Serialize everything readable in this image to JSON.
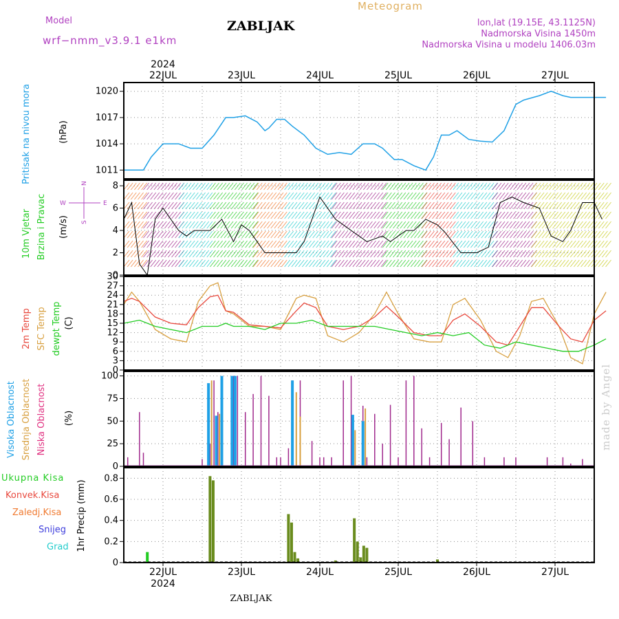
{
  "header": {
    "model_label": "Model",
    "model_name": "wrf−nmm_v3.9.1  e1km",
    "station": "ZABLJAK",
    "meteogram": "Meteogram",
    "lonlat": "lon,lat (19.15E, 43.1125N)",
    "elevation": "Nadmorska Visina 1450m",
    "model_elevation": "Nadmorska Visina u modelu 1406.03m",
    "watermark": "made by Angel",
    "footer_station": "ZABLJAK"
  },
  "colors": {
    "pressure": "#1ea0e6",
    "t2m": "#e8473c",
    "tsfc": "#d8a040",
    "dewpt": "#22cc22",
    "high_cloud": "#1ea0e6",
    "mid_cloud": "#d8a040",
    "low_cloud": "#a0288c",
    "total_precip": "#22cc22",
    "conv_precip": "#e8473c",
    "frozen_precip": "#f07a30",
    "snow": "#3c3cdc",
    "graupel": "#22cccc",
    "model_label": "#b040c0",
    "meteogram": "#e0b060"
  },
  "time_axis": {
    "year": "2024",
    "days": [
      "22JUL",
      "23JUL",
      "24JUL",
      "25JUL",
      "26JUL",
      "27JUL"
    ]
  },
  "panels": {
    "pressure": {
      "ylabel": "Pritisak na nivou mora",
      "unit": "(hPa)"
    },
    "wind": {
      "ylabel1": "10m Vjetar",
      "ylabel2": "Brzina i Pravac",
      "unit": "(m/s)",
      "compass_n": "N",
      "compass_s": "S",
      "compass_e": "E",
      "compass_w": "W"
    },
    "temp": {
      "ylabel1": "2m Temp",
      "ylabel2": "SFC Temp",
      "ylabel3": "dewpt Temp",
      "unit": "(C)"
    },
    "cloud": {
      "ylabel1": "Visoka Oblacnost",
      "ylabel2": "Srednja Oblacnost",
      "ylabel3": "Niska  Oblacnost",
      "unit": "(%)"
    },
    "precip": {
      "ylabel1": "Ukupna  Kisa",
      "ylabel2": "Konvek.Kisa",
      "ylabel3": "Zaledj.Kisa",
      "ylabel4": "Snijeg",
      "ylabel5": "Grad",
      "unit": "1hr Precip (mm)"
    }
  },
  "chart_data": [
    {
      "type": "line",
      "x_unit": "days",
      "ylim": [
        1010,
        1021
      ],
      "yticks": [
        1011,
        1014,
        1017,
        1020
      ],
      "grid": true,
      "series": [
        {
          "name": "Pritisak na nivou mora",
          "x": [
            -0.5,
            -0.25,
            -0.15,
            0,
            0.2,
            0.35,
            0.5,
            0.65,
            0.8,
            0.9,
            1.05,
            1.2,
            1.3,
            1.35,
            1.45,
            1.55,
            1.65,
            1.8,
            1.95,
            2.1,
            2.25,
            2.4,
            2.55,
            2.7,
            2.8,
            2.95,
            3.05,
            3.2,
            3.35,
            3.45,
            3.55,
            3.65,
            3.75,
            3.9,
            4.05,
            4.2,
            4.35,
            4.5,
            4.6,
            4.8,
            4.95,
            5.1,
            5.2,
            5.35,
            5.5,
            5.65
          ],
          "y": [
            1011,
            1011,
            1012.5,
            1014,
            1014,
            1013.5,
            1013.5,
            1015,
            1017,
            1017,
            1017.2,
            1016.5,
            1015.5,
            1015.8,
            1016.8,
            1016.8,
            1016,
            1015,
            1013.5,
            1012.8,
            1013,
            1012.8,
            1014,
            1014,
            1013.5,
            1012.2,
            1012.2,
            1011.5,
            1011,
            1012.5,
            1015,
            1015,
            1015.5,
            1014.5,
            1014.3,
            1014.2,
            1015.5,
            1018.5,
            1019,
            1019.5,
            1020,
            1019.5,
            1019.3,
            1019.3,
            1019.3,
            1019.3
          ]
        }
      ]
    },
    {
      "type": "line",
      "x_unit": "days",
      "ylim": [
        0,
        8.5
      ],
      "yticks": [
        0,
        2,
        4,
        6,
        8
      ],
      "grid": true,
      "series": [
        {
          "name": "10m Vjetar",
          "x": [
            -0.5,
            -0.4,
            -0.3,
            -0.2,
            -0.1,
            0,
            0.2,
            0.3,
            0.4,
            0.5,
            0.6,
            0.75,
            0.9,
            1,
            1.1,
            1.2,
            1.3,
            1.5,
            1.6,
            1.7,
            1.8,
            2,
            2.2,
            2.4,
            2.6,
            2.8,
            2.9,
            3.1,
            3.2,
            3.35,
            3.5,
            3.6,
            3.8,
            4,
            4.15,
            4.3,
            4.45,
            4.6,
            4.8,
            4.95,
            5.1,
            5.2,
            5.35,
            5.5,
            5.6
          ],
          "y": [
            5,
            6.5,
            1,
            0,
            5,
            6,
            4,
            3.5,
            4,
            4,
            4,
            5,
            3,
            4.5,
            4,
            3,
            2,
            2,
            2,
            2,
            3,
            7,
            5,
            4,
            3,
            3.5,
            3,
            4,
            4,
            5,
            4.5,
            3.8,
            2,
            2,
            2.5,
            6.5,
            7,
            6.5,
            6,
            3.5,
            3,
            4,
            6.5,
            6.5,
            5
          ]
        }
      ]
    },
    {
      "type": "line",
      "x_unit": "days",
      "ylim": [
        0,
        30
      ],
      "yticks": [
        0,
        3,
        6,
        9,
        12,
        15,
        18,
        21,
        24,
        27,
        30
      ],
      "grid": true,
      "series": [
        {
          "name": "2m Temp",
          "x": [
            -0.5,
            -0.4,
            -0.3,
            -0.1,
            0.1,
            0.3,
            0.45,
            0.6,
            0.7,
            0.8,
            0.9,
            1.1,
            1.3,
            1.5,
            1.7,
            1.8,
            1.95,
            2.1,
            2.3,
            2.5,
            2.7,
            2.85,
            3.0,
            3.2,
            3.4,
            3.55,
            3.7,
            3.85,
            4.05,
            4.25,
            4.4,
            4.55,
            4.7,
            4.85,
            5.05,
            5.2,
            5.35,
            5.5,
            5.65
          ],
          "y": [
            22,
            23,
            22,
            17,
            15,
            14.5,
            20,
            23.5,
            24,
            19,
            18.5,
            14.5,
            14,
            13.5,
            19,
            21.5,
            20,
            14,
            13,
            14,
            17,
            20.5,
            17,
            12,
            11,
            11,
            16,
            18,
            14,
            9,
            8,
            14,
            20,
            20,
            14,
            10,
            9,
            16,
            19
          ]
        },
        {
          "name": "SFC Temp",
          "x": [
            -0.5,
            -0.4,
            -0.3,
            -0.1,
            0.1,
            0.3,
            0.45,
            0.6,
            0.7,
            0.8,
            0.9,
            1.1,
            1.3,
            1.5,
            1.7,
            1.8,
            1.95,
            2.1,
            2.3,
            2.5,
            2.7,
            2.85,
            3.0,
            3.2,
            3.4,
            3.55,
            3.7,
            3.85,
            4.05,
            4.25,
            4.4,
            4.55,
            4.7,
            4.85,
            5.05,
            5.2,
            5.35,
            5.5,
            5.65
          ],
          "y": [
            21,
            25,
            22,
            13,
            10,
            9,
            22,
            27,
            28,
            19,
            18,
            14,
            14,
            13,
            23,
            24,
            23,
            11,
            9,
            12,
            18,
            25,
            18,
            10,
            9,
            9,
            21,
            23,
            16,
            6,
            4,
            11,
            22,
            23,
            14,
            4,
            2,
            18,
            25
          ]
        },
        {
          "name": "dewpt Temp",
          "x": [
            -0.5,
            -0.3,
            -0.1,
            0.1,
            0.3,
            0.5,
            0.7,
            0.8,
            0.9,
            1.1,
            1.3,
            1.5,
            1.7,
            1.9,
            2.1,
            2.3,
            2.5,
            2.7,
            2.9,
            3.1,
            3.3,
            3.5,
            3.7,
            3.9,
            4.1,
            4.3,
            4.5,
            4.7,
            4.9,
            5.1,
            5.3,
            5.5,
            5.65
          ],
          "y": [
            15,
            16,
            14,
            13,
            12,
            14,
            14,
            15,
            14,
            14,
            13,
            15,
            15,
            16,
            14,
            14,
            14,
            14,
            13,
            12,
            11,
            12,
            11,
            12,
            8,
            7,
            9,
            8,
            7,
            6,
            6,
            8,
            10
          ]
        }
      ]
    },
    {
      "type": "bar",
      "x_unit": "days",
      "ylim": [
        0,
        105
      ],
      "yticks": [
        0,
        25,
        50,
        75,
        100
      ],
      "grid": true,
      "series": [
        {
          "name": "Niska Oblacnost",
          "x": [
            -0.45,
            -0.3,
            -0.25,
            0.5,
            0.6,
            0.65,
            0.7,
            0.9,
            0.95,
            1.05,
            1.15,
            1.25,
            1.35,
            1.45,
            1.5,
            1.6,
            1.65,
            1.75,
            1.9,
            2.0,
            2.05,
            2.15,
            2.3,
            2.4,
            2.55,
            2.6,
            2.7,
            2.8,
            2.9,
            3.0,
            3.1,
            3.2,
            3.3,
            3.4,
            3.55,
            3.65,
            3.8,
            3.95,
            4.1,
            4.35,
            4.5,
            4.9,
            5.1,
            5.2,
            5.35
          ],
          "y": [
            10,
            60,
            15,
            8,
            25,
            95,
            60,
            100,
            100,
            60,
            80,
            100,
            78,
            10,
            10,
            20,
            95,
            95,
            28,
            10,
            10,
            10,
            95,
            100,
            67,
            10,
            58,
            25,
            68,
            10,
            95,
            100,
            42,
            10,
            48,
            30,
            65,
            50,
            10,
            10,
            10,
            10,
            10,
            3,
            8
          ]
        },
        {
          "name": "Srednja Oblacnost",
          "x": [
            0.62,
            0.72,
            1.7,
            1.75,
            2.45,
            2.58
          ],
          "y": [
            95,
            58,
            82,
            55,
            40,
            64
          ]
        },
        {
          "name": "Visoka Oblacnost",
          "x": [
            0.58,
            0.68,
            0.75,
            0.88,
            0.92,
            1.65,
            2.42,
            2.55
          ],
          "y": [
            92,
            56,
            100,
            100,
            100,
            95,
            57,
            50
          ]
        }
      ]
    },
    {
      "type": "bar",
      "x_unit": "days",
      "ylim": [
        0,
        0.9
      ],
      "yticks": [
        0,
        0.2,
        0.4,
        0.6,
        0.8
      ],
      "grid": true,
      "series": [
        {
          "name": "Ukupna Kisa",
          "x": [
            -0.2,
            0.6,
            0.64,
            1.6,
            1.64,
            1.68,
            1.72,
            2.2,
            2.44,
            2.48,
            2.52,
            2.56,
            2.6,
            3.5
          ],
          "y": [
            0.1,
            0.82,
            0.78,
            0.46,
            0.38,
            0.1,
            0.04,
            0.02,
            0.42,
            0.2,
            0.05,
            0.16,
            0.14,
            0.03
          ]
        }
      ]
    }
  ]
}
